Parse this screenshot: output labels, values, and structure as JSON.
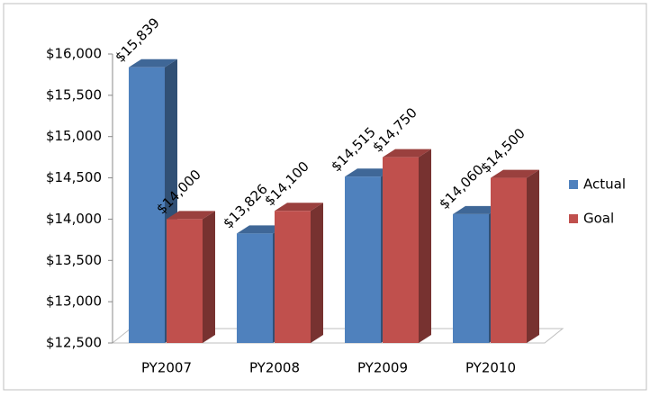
{
  "chart_data": {
    "type": "bar3d",
    "categories": [
      "PY2007",
      "PY2008",
      "PY2009",
      "PY2010"
    ],
    "series": [
      {
        "name": "Actual",
        "color": "#4f81bd",
        "values": [
          15839,
          13826,
          14515,
          14060
        ],
        "value_labels": [
          "$15,839",
          "$13,826",
          "$14,515",
          "$14,060"
        ]
      },
      {
        "name": "Goal",
        "color": "#c0504d",
        "values": [
          14000,
          14100,
          14750,
          14500
        ],
        "value_labels": [
          "$14,000",
          "$14,100",
          "$14,750",
          "$14,500"
        ]
      }
    ],
    "ylim": [
      12500,
      16000
    ],
    "yticks": [
      {
        "value": 12500,
        "label": "$12,500"
      },
      {
        "value": 13000,
        "label": "$13,000"
      },
      {
        "value": 13500,
        "label": "$13,500"
      },
      {
        "value": 14000,
        "label": "$14,000"
      },
      {
        "value": 14500,
        "label": "$14,500"
      },
      {
        "value": 15000,
        "label": "$15,000"
      },
      {
        "value": 15500,
        "label": "$15,500"
      },
      {
        "value": 16000,
        "label": "$16,000"
      }
    ],
    "legend": "right"
  }
}
